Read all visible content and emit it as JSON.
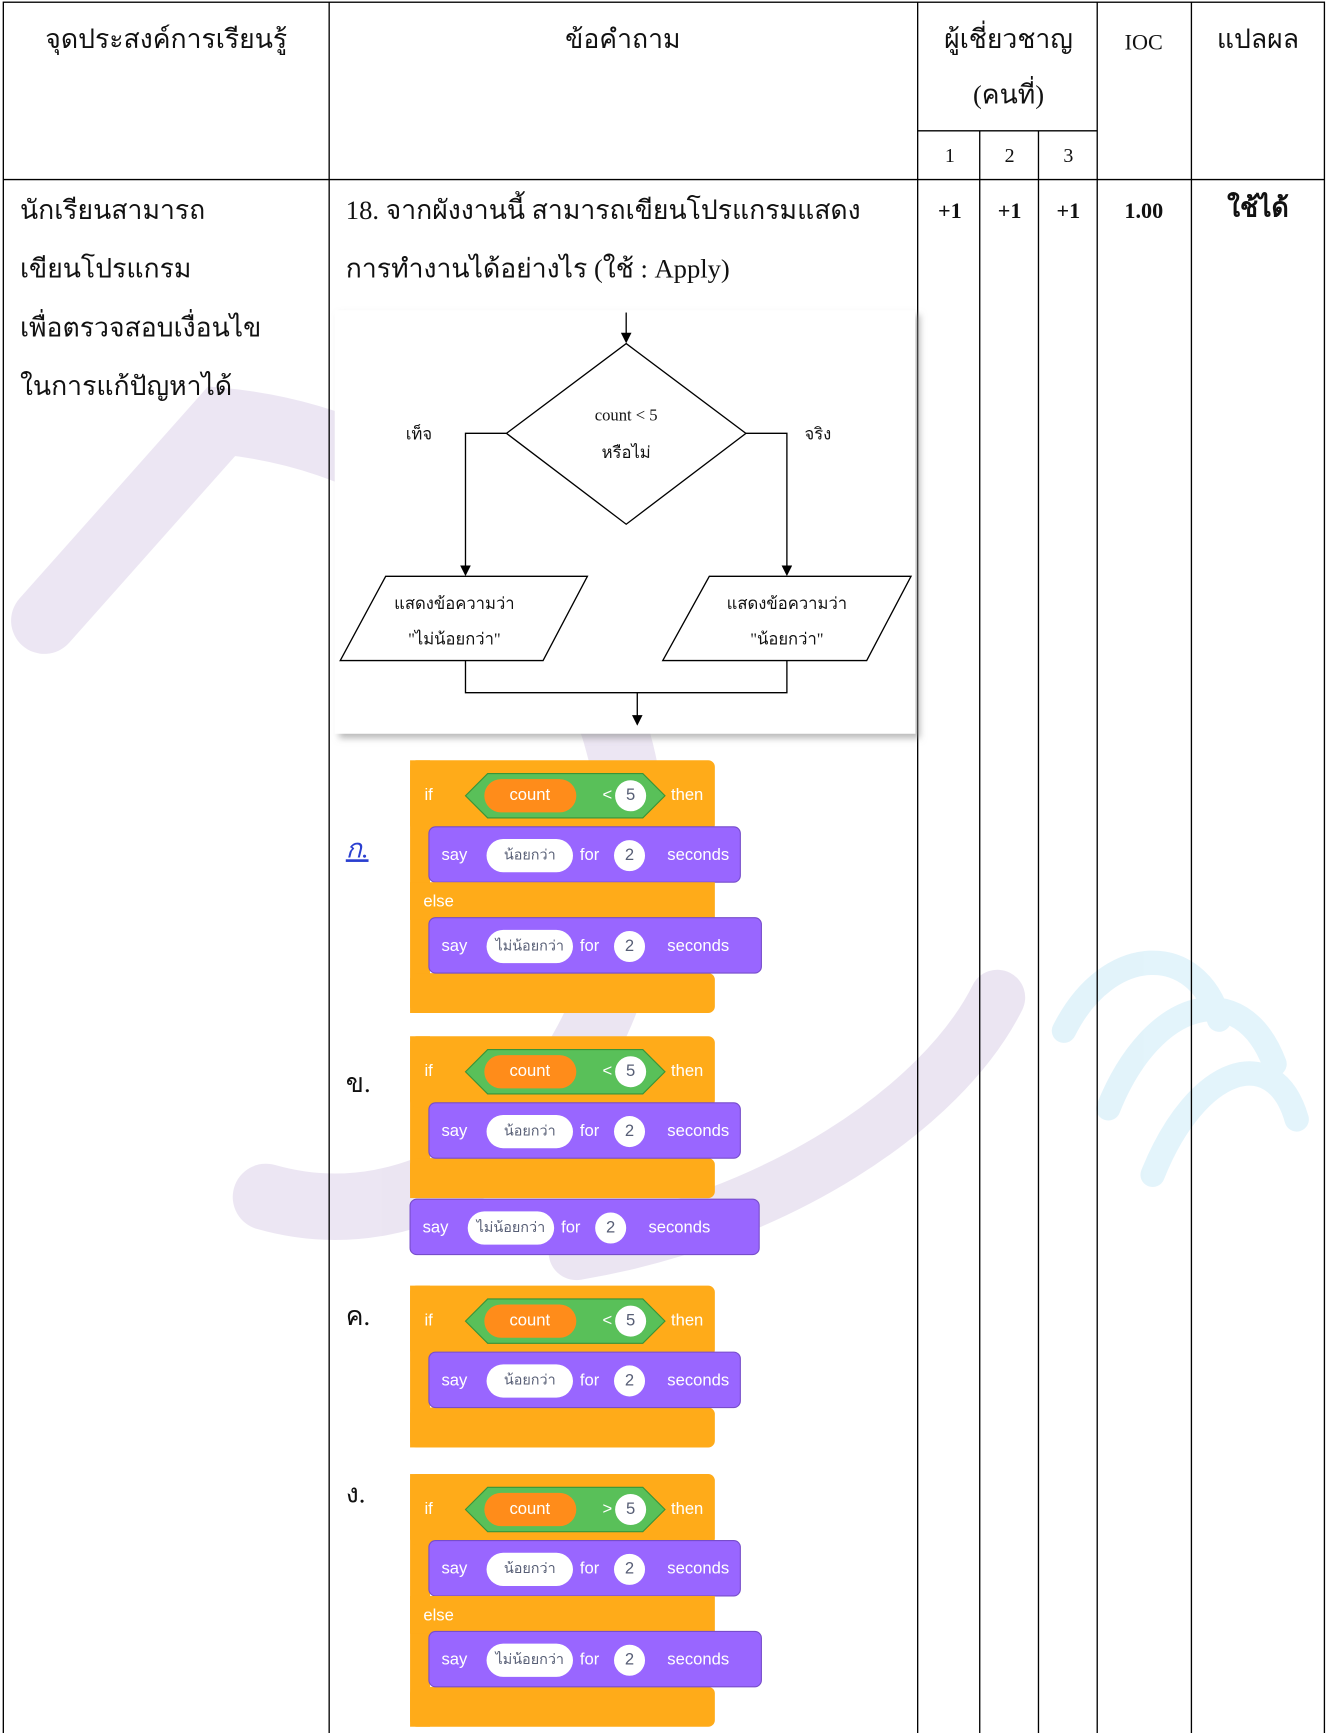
{
  "table": {
    "header": {
      "objective": "จุดประสงค์การเรียนรู้",
      "question": "ข้อคำถาม",
      "experts": "ผู้เชี่ยวชาญ",
      "experts_sub": "(คนที่)",
      "ioc": "IOC",
      "result": "แปลผล",
      "expert_numbers": [
        "1",
        "2",
        "3"
      ]
    },
    "rows": [
      {
        "objective": [
          "นักเรียนสามารถ",
          "เขียนโปรแกรม",
          "เพื่อตรวจสอบเงื่อนไข",
          "ในการแก้ปัญหาได้"
        ],
        "question": [
          "18. จากผังงานนี้ สามารถเขียนโปรแกรมแสดง",
          "การทำงานได้อย่างไร (ใช้ : Apply)"
        ],
        "flowchart": {
          "condition": "count < 5",
          "condition_suffix": "หรือไม่",
          "false_label": "เท็จ",
          "true_label": "จริง",
          "false_output": [
            "แสดงข้อความว่า",
            "\"ไม่น้อยกว่า\""
          ],
          "true_output": [
            "แสดงข้อความว่า",
            "\"น้อยกว่า\""
          ]
        },
        "options": [
          {
            "label": "ก.",
            "condition": {
              "keyword": "if",
              "variable": "count",
              "operator": "<",
              "value": "5",
              "then": "then"
            },
            "then_say": {
              "keyword": "say",
              "message": "น้อยกว่า",
              "for": "for",
              "duration": "2",
              "unit": "seconds"
            },
            "else": "else",
            "else_say": {
              "keyword": "say",
              "message": "ไม่น้อยกว่า",
              "for": "for",
              "duration": "2",
              "unit": "seconds"
            }
          },
          {
            "label": "ข.",
            "condition": {
              "keyword": "if",
              "variable": "count",
              "operator": "<",
              "value": "5",
              "then": "then"
            },
            "then_say": {
              "keyword": "say",
              "message": "น้อยกว่า",
              "for": "for",
              "duration": "2",
              "unit": "seconds"
            },
            "after_say": {
              "keyword": "say",
              "message": "ไม่น้อยกว่า",
              "for": "for",
              "duration": "2",
              "unit": "seconds"
            }
          },
          {
            "label": "ค.",
            "condition": {
              "keyword": "if",
              "variable": "count",
              "operator": "<",
              "value": "5",
              "then": "then"
            },
            "then_say": {
              "keyword": "say",
              "message": "น้อยกว่า",
              "for": "for",
              "duration": "2",
              "unit": "seconds"
            }
          },
          {
            "label": "ง.",
            "condition": {
              "keyword": "if",
              "variable": "count",
              "operator": ">",
              "value": "5",
              "then": "then"
            },
            "then_say": {
              "keyword": "say",
              "message": "น้อยกว่า",
              "for": "for",
              "duration": "2",
              "unit": "seconds"
            },
            "else": "else",
            "else_say": {
              "keyword": "say",
              "message": "ไม่น้อยกว่า",
              "for": "for",
              "duration": "2",
              "unit": "seconds"
            }
          }
        ],
        "scores": [
          "+1",
          "+1",
          "+1"
        ],
        "ioc": "1.00",
        "result": "ใช้ได้"
      }
    ]
  }
}
